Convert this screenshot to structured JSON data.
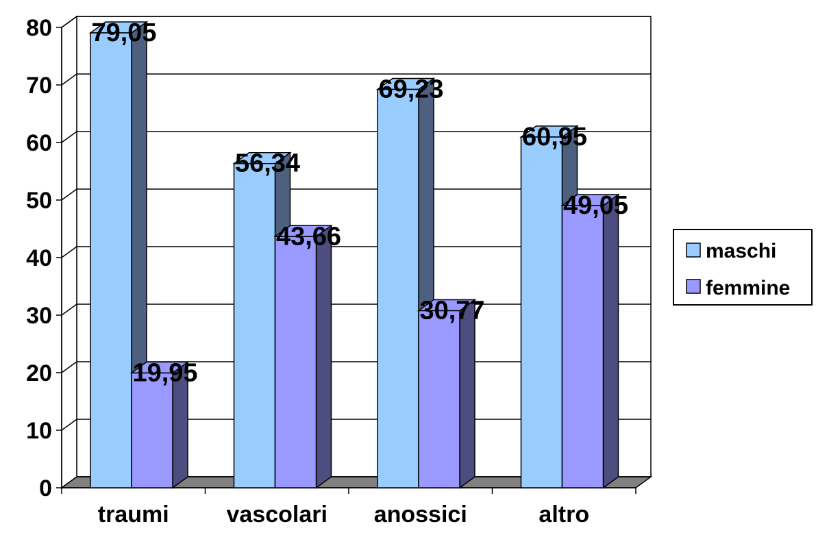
{
  "chart_data": {
    "type": "bar",
    "style": "3d-clustered-column",
    "categories": [
      "traumi",
      "vascolari",
      "anossici",
      "altro"
    ],
    "series": [
      {
        "name": "maschi",
        "values": [
          79.05,
          56.34,
          69.23,
          60.95
        ],
        "labels": [
          "79,05",
          "56,34",
          "69,23",
          "60,95"
        ],
        "color": "#99ccff",
        "side_color": "#4d6080"
      },
      {
        "name": "femmine",
        "values": [
          19.95,
          43.66,
          30.77,
          49.05
        ],
        "labels": [
          "19,95",
          "43,66",
          "30,77",
          "49,05"
        ],
        "color": "#9999ff",
        "side_color": "#4d4d80"
      }
    ],
    "ylim": [
      0,
      80
    ],
    "yticks": [
      0,
      10,
      20,
      30,
      40,
      50,
      60,
      70,
      80
    ],
    "grid": true,
    "legend": "right",
    "floor_color": "#808080"
  }
}
